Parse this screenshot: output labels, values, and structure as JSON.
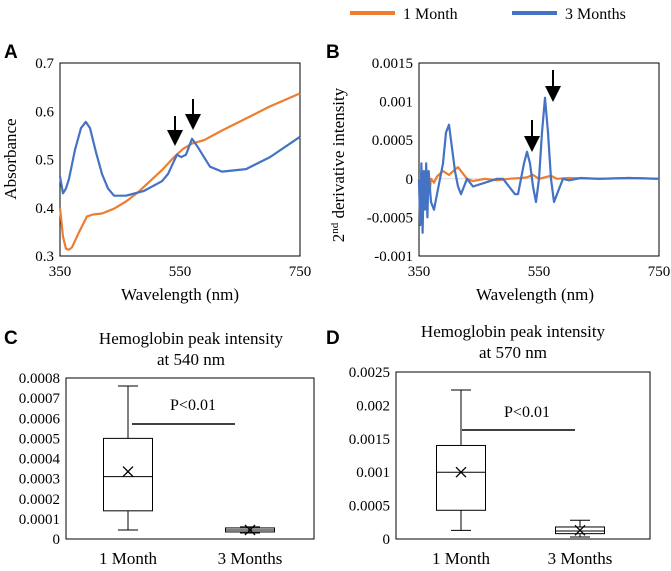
{
  "legend": {
    "series1": {
      "label": "1 Month",
      "color": "#ED7D31"
    },
    "series2": {
      "label": "3 Months",
      "color": "#4472C4"
    }
  },
  "chart_data": [
    {
      "panel": "A",
      "type": "line",
      "xlabel": "Wavelength (nm)",
      "ylabel": "Absorbance",
      "xlim": [
        350,
        750
      ],
      "ylim": [
        0.3,
        0.7
      ],
      "xticks": [
        "350",
        "550",
        "750"
      ],
      "yticks": [
        "0.3",
        "0.4",
        "0.5",
        "0.6",
        "0.7"
      ],
      "annotations": [
        "arrow at 540 nm",
        "arrow at 570 nm"
      ],
      "series": [
        {
          "name": "1 Month",
          "color": "#ED7D31",
          "x": [
            350,
            355,
            360,
            365,
            370,
            380,
            395,
            405,
            420,
            440,
            460,
            480,
            500,
            520,
            540,
            555,
            570,
            590,
            620,
            660,
            700,
            750
          ],
          "y": [
            0.4,
            0.34,
            0.315,
            0.313,
            0.318,
            0.345,
            0.382,
            0.386,
            0.388,
            0.398,
            0.413,
            0.432,
            0.455,
            0.478,
            0.505,
            0.522,
            0.533,
            0.54,
            0.56,
            0.585,
            0.61,
            0.637
          ]
        },
        {
          "name": "3 Months",
          "color": "#4472C4",
          "x": [
            350,
            355,
            360,
            365,
            375,
            385,
            393,
            400,
            410,
            420,
            430,
            440,
            460,
            490,
            520,
            530,
            545,
            552,
            560,
            570,
            580,
            600,
            620,
            660,
            700,
            750
          ],
          "y": [
            0.465,
            0.43,
            0.44,
            0.46,
            0.52,
            0.565,
            0.578,
            0.565,
            0.515,
            0.47,
            0.44,
            0.425,
            0.425,
            0.435,
            0.455,
            0.47,
            0.51,
            0.505,
            0.51,
            0.543,
            0.525,
            0.485,
            0.475,
            0.48,
            0.505,
            0.547
          ]
        }
      ]
    },
    {
      "panel": "B",
      "type": "line",
      "xlabel": "Wavelength (nm)",
      "ylabel_pre": "2",
      "ylabel_sup": "nd",
      "ylabel_post": " derivative intensity",
      "xlim": [
        350,
        750
      ],
      "ylim": [
        -0.001,
        0.0015
      ],
      "xticks": [
        "350",
        "550",
        "750"
      ],
      "yticks": [
        "-0.001",
        "-0.0005",
        "0",
        "0.0005",
        "0.001",
        "0.0015"
      ],
      "annotations": [
        "arrow at 540 nm",
        "arrow at 570 nm"
      ],
      "series": [
        {
          "name": "1 Month",
          "color": "#ED7D31",
          "x": [
            350,
            352,
            354,
            356,
            358,
            360,
            362,
            364,
            366,
            368,
            370,
            375,
            380,
            390,
            400,
            410,
            415,
            420,
            425,
            430,
            440,
            460,
            480,
            500,
            520,
            530,
            540,
            550,
            560,
            570,
            580,
            600,
            650,
            700,
            750
          ],
          "y": [
            0,
            -0.0005,
            0.0001,
            -0.0003,
            0.0001,
            -0.0002,
            5e-05,
            -0.0002,
            0.0001,
            -0.00015,
            0.0,
            -5e-05,
            3e-05,
            0.0001,
            5e-05,
            0.00012,
            0.00015,
            0.0001,
            5e-05,
            0.0,
            -3e-05,
            0.0,
            -2e-05,
            0.0,
            1e-05,
            2e-05,
            5e-05,
            0.0,
            2e-05,
            4e-05,
            0.0,
            1e-05,
            0.0,
            1e-05,
            0.0
          ]
        },
        {
          "name": "3 Months",
          "color": "#4472C4",
          "x": [
            350,
            352,
            354,
            356,
            358,
            360,
            362,
            364,
            366,
            370,
            375,
            380,
            385,
            390,
            395,
            400,
            405,
            410,
            415,
            420,
            425,
            430,
            440,
            460,
            480,
            490,
            500,
            510,
            515,
            520,
            525,
            530,
            535,
            540,
            545,
            550,
            555,
            560,
            565,
            570,
            575,
            580,
            585,
            590,
            600,
            620,
            650,
            700,
            750
          ],
          "y": [
            0,
            -0.0006,
            0.0002,
            -0.0007,
            0.0001,
            -0.0004,
            0.0002,
            -0.0005,
            0.0001,
            -0.0003,
            -0.0004,
            -0.0002,
            0.0,
            0.0002,
            0.0006,
            0.0007,
            0.0004,
            0.0001,
            -0.0001,
            -0.0002,
            -0.0001,
            0.0,
            -0.0001,
            -5e-05,
            0.0,
            0.0,
            -0.0001,
            -0.0002,
            -0.0002,
            0.0,
            0.0002,
            0.00035,
            0.0002,
            -0.0001,
            -0.0003,
            0.0,
            0.0006,
            0.00105,
            0.0006,
            0.0,
            -0.0003,
            -0.0002,
            -0.0001,
            0.0,
            -2e-05,
            1e-05,
            0.0,
            1e-05,
            0.0
          ]
        }
      ]
    },
    {
      "panel": "C",
      "type": "box",
      "title_line1": "Hemoglobin peak intensity",
      "title_line2": "at 540 nm",
      "ylim": [
        0,
        0.0008
      ],
      "yticks": [
        "0",
        "0.0001",
        "0.0002",
        "0.0003",
        "0.0004",
        "0.0005",
        "0.0006",
        "0.0007",
        "0.0008"
      ],
      "categories": [
        "1 Month",
        "3 Months"
      ],
      "annotation": "P<0.01",
      "boxes": [
        {
          "min": 4.5e-05,
          "q1": 0.00014,
          "median": 0.00031,
          "q3": 0.0005,
          "max": 0.00076,
          "mean": 0.000335
        },
        {
          "min": 3e-05,
          "q1": 3.5e-05,
          "median": 4.5e-05,
          "q3": 5.5e-05,
          "max": 6e-05,
          "mean": 4.5e-05
        }
      ]
    },
    {
      "panel": "D",
      "type": "box",
      "title_line1": "Hemoglobin peak intensity",
      "title_line2": "at 570 nm",
      "ylim": [
        0,
        0.0025
      ],
      "yticks": [
        "0",
        "0.0005",
        "0.001",
        "0.0015",
        "0.002",
        "0.0025"
      ],
      "categories": [
        "1 Month",
        "3 Months"
      ],
      "annotation": "P<0.01",
      "boxes": [
        {
          "min": 0.00013,
          "q1": 0.00043,
          "median": 0.001,
          "q3": 0.0014,
          "max": 0.00223,
          "mean": 0.001
        },
        {
          "min": 3e-05,
          "q1": 8e-05,
          "median": 0.00012,
          "q3": 0.00018,
          "max": 0.00028,
          "mean": 0.00013
        }
      ]
    }
  ]
}
